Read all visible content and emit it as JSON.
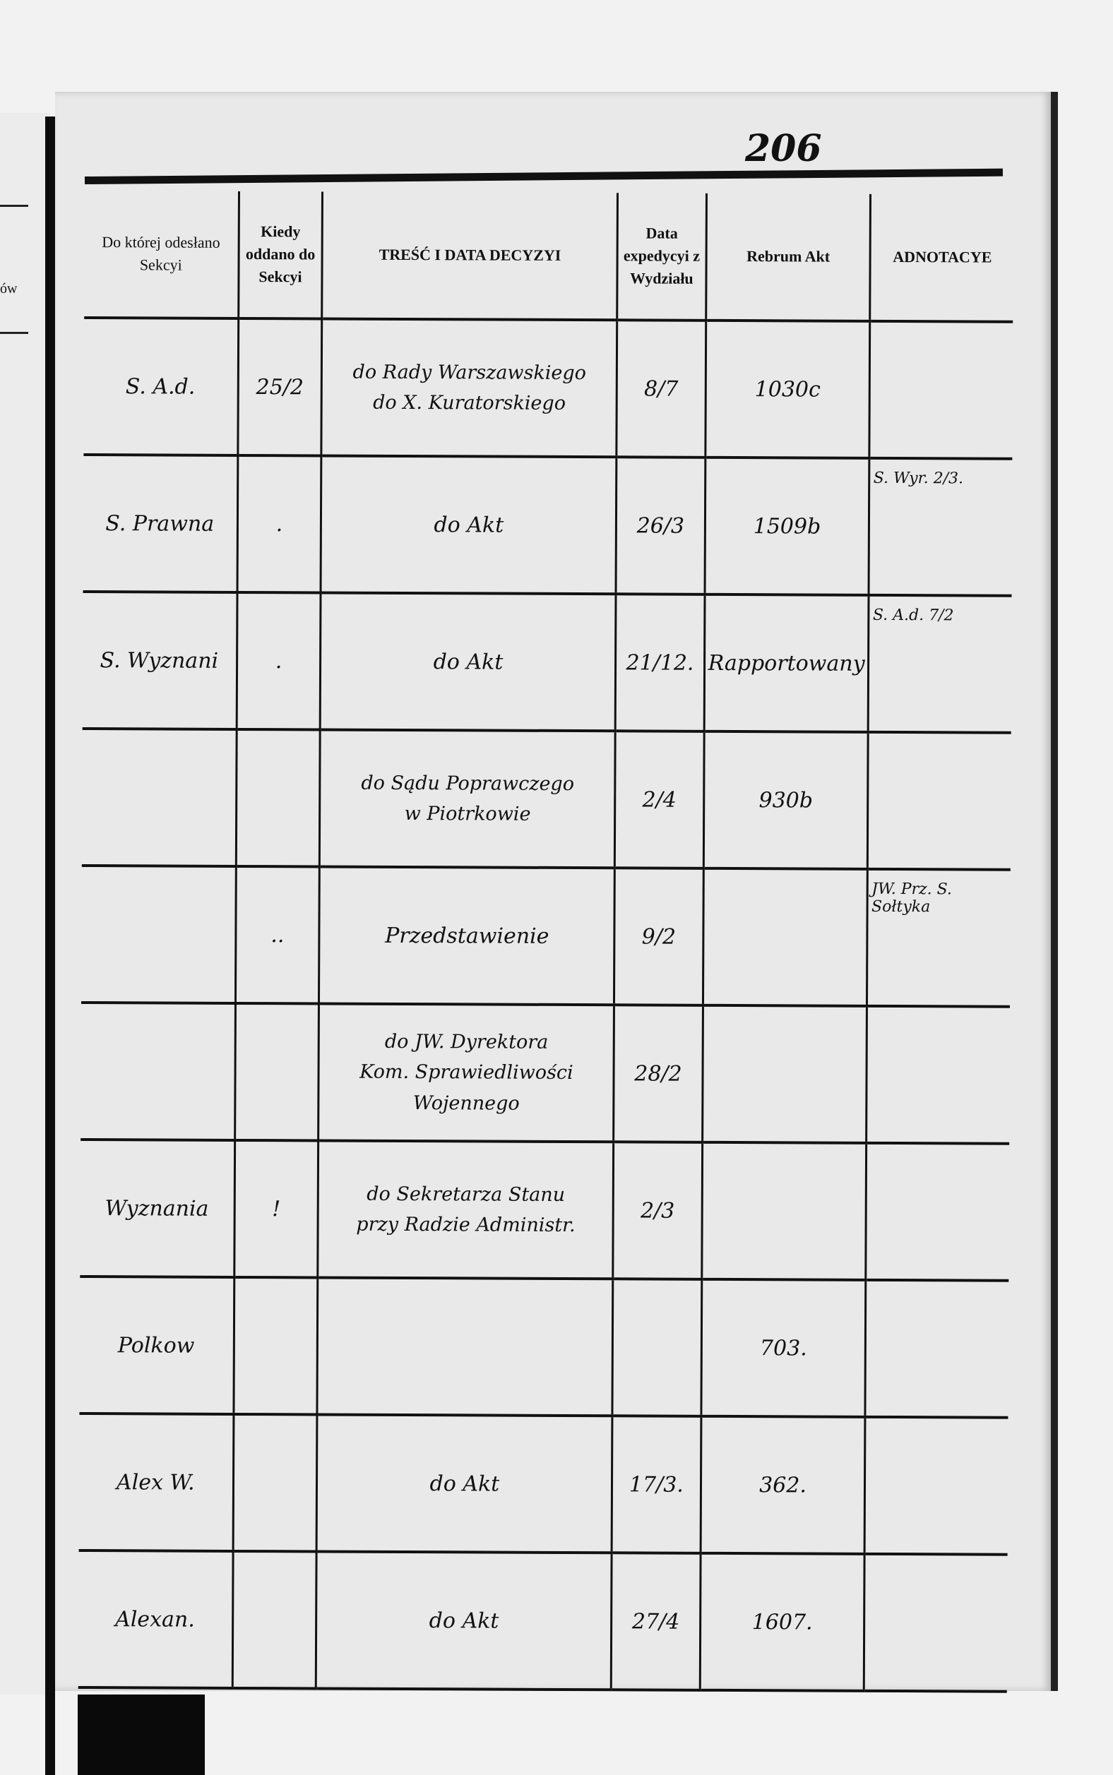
{
  "page_number": "206",
  "left_page_fragment": "ów",
  "table": {
    "headers": [
      "Do której odesłano Sekcyi",
      "Kiedy oddano do Sekcyi",
      "TREŚĆ I DATA DECYZYI",
      "Data expedycyi z Wydziału",
      "Rebrum Akt",
      "ADNOTACYE"
    ],
    "rows": [
      [
        "S. A.d.",
        "25/2",
        "do Rady Warszawskiego\ndo X. Kuratorskiego",
        "8/7",
        "1030c",
        ""
      ],
      [
        "S. Prawna",
        ".",
        "do Akt",
        "26/3",
        "1509b",
        "S. Wyr. 2/3."
      ],
      [
        "S. Wyznani",
        ".",
        "do Akt",
        "21/12.",
        "Rapportowany",
        "S. A.d. 7/2"
      ],
      [
        "",
        "",
        "do Sądu Poprawczego\nw Piotrkowie",
        "2/4",
        "930b",
        ""
      ],
      [
        "",
        "..",
        "Przedstawienie",
        "9/2",
        "",
        "JW. Prz. S. Sołtyka"
      ],
      [
        "",
        "",
        "do JW. Dyrektora\nKom. Sprawiedliwości\nWojennego",
        "28/2",
        "",
        ""
      ],
      [
        "Wyznania",
        "!",
        "do Sekretarza Stanu\nprzy Radzie Administr.",
        "2/3",
        "",
        ""
      ],
      [
        "Polkow",
        "",
        "",
        "",
        "703.",
        ""
      ],
      [
        "Alex W.",
        "",
        "do Akt",
        "17/3.",
        "362.",
        ""
      ],
      [
        "Alexan.",
        "",
        "do Akt",
        "27/4",
        "1607.",
        ""
      ]
    ]
  }
}
